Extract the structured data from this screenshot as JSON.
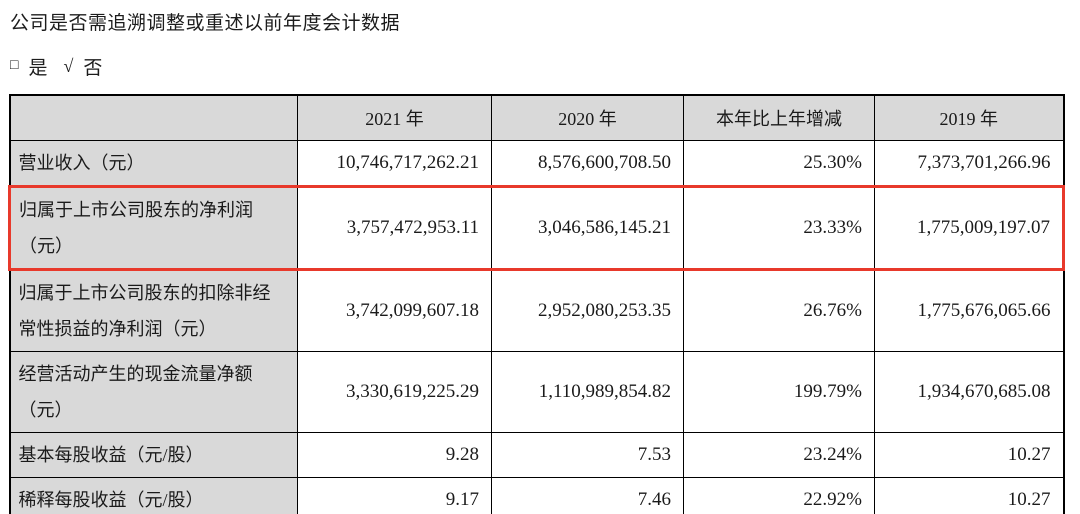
{
  "page": {
    "question": "公司是否需追溯调整或重述以前年度会计数据",
    "answer": {
      "checkbox_glyph": "□",
      "yes_label": "是",
      "check_glyph": "√",
      "no_label": "否"
    }
  },
  "colors": {
    "highlight_border": "#e8392b",
    "header_bg": "#d9d9d9",
    "table_border": "#000000"
  },
  "table": {
    "headers": [
      "",
      "2021 年",
      "2020 年",
      "本年比上年增减",
      "2019 年"
    ],
    "rows": [
      {
        "highlight": false,
        "cells": [
          "营业收入（元）",
          "10,746,717,262.21",
          "8,576,600,708.50",
          "25.30%",
          "7,373,701,266.96"
        ]
      },
      {
        "highlight": true,
        "cells": [
          "归属于上市公司股东的净利润\n（元）",
          "3,757,472,953.11",
          "3,046,586,145.21",
          "23.33%",
          "1,775,009,197.07"
        ]
      },
      {
        "highlight": false,
        "cells": [
          "归属于上市公司股东的扣除非经\n常性损益的净利润（元）",
          "3,742,099,607.18",
          "2,952,080,253.35",
          "26.76%",
          "1,775,676,065.66"
        ]
      },
      {
        "highlight": false,
        "cells": [
          "经营活动产生的现金流量净额\n（元）",
          "3,330,619,225.29",
          "1,110,989,854.82",
          "199.79%",
          "1,934,670,685.08"
        ]
      },
      {
        "highlight": false,
        "cells": [
          "基本每股收益（元/股）",
          "9.28",
          "7.53",
          "23.24%",
          "10.27"
        ]
      },
      {
        "highlight": false,
        "cells": [
          "稀释每股收益（元/股）",
          "9.17",
          "7.46",
          "22.92%",
          "10.27"
        ]
      }
    ]
  }
}
